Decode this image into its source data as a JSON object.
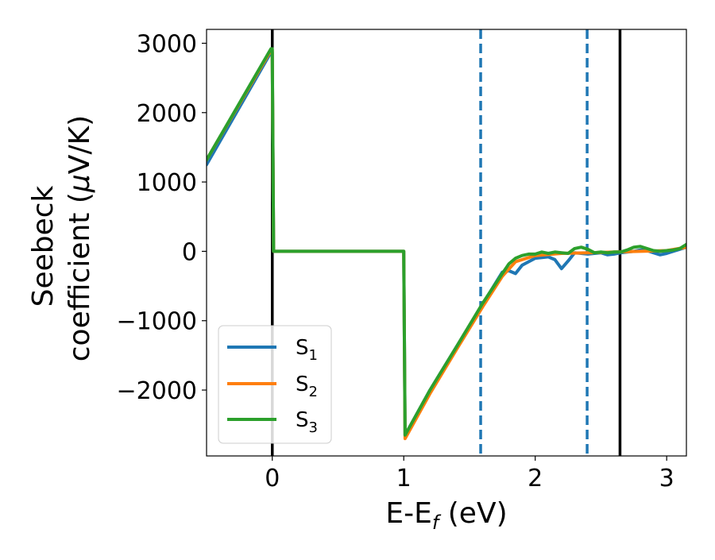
{
  "chart_data": {
    "type": "line",
    "xlabel": "E-E",
    "xlabel_sub": "f",
    "xlabel_unit": " (eV)",
    "ylabel_line1": "Seebeck",
    "ylabel_line2": "coefficient  (",
    "ylabel_mu": "μ",
    "ylabel_unit": "V/K)",
    "xlim": [
      -0.5,
      3.15
    ],
    "ylim": [
      -2950,
      3200
    ],
    "x_ticks": [
      0,
      1,
      2,
      3
    ],
    "x_tick_labels": [
      "0",
      "1",
      "2",
      "3"
    ],
    "y_ticks": [
      -2000,
      -1000,
      0,
      1000,
      2000,
      3000
    ],
    "y_tick_labels": [
      "−2000",
      "−1000",
      "0",
      "1000",
      "2000",
      "3000"
    ],
    "grid": false,
    "legend_position": "lower-left",
    "vertical_lines": [
      {
        "x": 0,
        "style": "solid",
        "color": "#000000"
      },
      {
        "x": 1.585,
        "style": "dashed",
        "color": "#1f77b4"
      },
      {
        "x": 2.395,
        "style": "dashed",
        "color": "#1f77b4"
      },
      {
        "x": 2.645,
        "style": "solid",
        "color": "#000000"
      }
    ],
    "series": [
      {
        "name": "S",
        "sub": "1",
        "color": "#1f77b4",
        "x": [
          -0.5,
          -0.01,
          0.0,
          0.01,
          1.0,
          1.01,
          1.2,
          1.4,
          1.6,
          1.75,
          1.8,
          1.85,
          1.9,
          1.95,
          2.0,
          2.05,
          2.1,
          2.15,
          2.2,
          2.25,
          2.3,
          2.35,
          2.4,
          2.45,
          2.5,
          2.55,
          2.6,
          2.65,
          2.7,
          2.75,
          2.8,
          2.85,
          2.9,
          2.95,
          3.0,
          3.05,
          3.1,
          3.15
        ],
        "y": [
          1250,
          2870,
          2870,
          0,
          0,
          -2650,
          -2000,
          -1380,
          -760,
          -300,
          -280,
          -320,
          -200,
          -150,
          -100,
          -90,
          -80,
          -120,
          -250,
          -140,
          -20,
          -30,
          -40,
          -30,
          -20,
          -50,
          -40,
          -20,
          -10,
          0,
          20,
          10,
          -20,
          -50,
          -30,
          0,
          30,
          60
        ]
      },
      {
        "name": "S",
        "sub": "2",
        "color": "#ff7f0e",
        "x": [
          -0.5,
          -0.01,
          0.0,
          0.01,
          1.0,
          1.01,
          1.2,
          1.4,
          1.6,
          1.75,
          1.85,
          2.0,
          2.2,
          2.4,
          2.6,
          2.8,
          3.0,
          3.15
        ],
        "y": [
          1320,
          2900,
          2900,
          0,
          0,
          -2700,
          -2050,
          -1420,
          -800,
          -360,
          -150,
          -60,
          -30,
          -20,
          -10,
          0,
          10,
          60
        ]
      },
      {
        "name": "S",
        "sub": "3",
        "color": "#2ca02c",
        "x": [
          -0.5,
          -0.01,
          0.0,
          0.01,
          1.0,
          1.01,
          1.2,
          1.4,
          1.6,
          1.75,
          1.8,
          1.85,
          1.9,
          1.95,
          2.0,
          2.05,
          2.1,
          2.15,
          2.2,
          2.25,
          2.3,
          2.35,
          2.4,
          2.45,
          2.5,
          2.55,
          2.6,
          2.65,
          2.7,
          2.75,
          2.8,
          2.85,
          2.9,
          2.95,
          3.0,
          3.05,
          3.1,
          3.15
        ],
        "y": [
          1320,
          2920,
          2920,
          0,
          0,
          -2650,
          -2000,
          -1380,
          -750,
          -320,
          -180,
          -100,
          -60,
          -40,
          -40,
          -10,
          -30,
          -10,
          -20,
          -30,
          40,
          60,
          30,
          -20,
          -10,
          -20,
          -10,
          -10,
          20,
          60,
          70,
          40,
          10,
          0,
          10,
          20,
          40,
          100
        ]
      }
    ]
  }
}
